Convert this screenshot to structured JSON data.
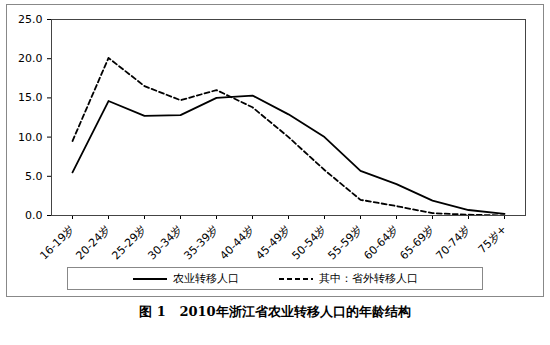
{
  "chart_data": {
    "type": "line",
    "title": "图 1   2010年浙江省农业转移人口的年龄结构",
    "categories": [
      "16-19岁",
      "20-24岁",
      "25-29岁",
      "30-34岁",
      "35-39岁",
      "40-44岁",
      "45-49岁",
      "50-54岁",
      "55-59岁",
      "60-64岁",
      "65-69岁",
      "70-74岁",
      "75岁+"
    ],
    "series": [
      {
        "name": "农业转移人口",
        "color": "#000000",
        "line_style": "solid",
        "values": [
          5.5,
          14.6,
          12.7,
          12.8,
          15.0,
          15.3,
          12.9,
          10.0,
          5.7,
          4.0,
          1.9,
          0.7,
          0.2
        ]
      },
      {
        "name": "其中：省外转移人口",
        "color": "#000000",
        "line_style": "dashed",
        "values": [
          9.5,
          20.1,
          16.5,
          14.7,
          16.0,
          13.8,
          10.0,
          5.8,
          2.0,
          1.2,
          0.3,
          0.1,
          0.0
        ]
      }
    ],
    "ylim": [
      0,
      25
    ],
    "yticks": [
      {
        "value": 0,
        "label": "0.0"
      },
      {
        "value": 5,
        "label": "5.0"
      },
      {
        "value": 10,
        "label": "10.0"
      },
      {
        "value": 15,
        "label": "15.0"
      },
      {
        "value": 20,
        "label": "20.0"
      },
      {
        "value": 25,
        "label": "25.0"
      }
    ],
    "grid": false,
    "legend": "bottom"
  }
}
